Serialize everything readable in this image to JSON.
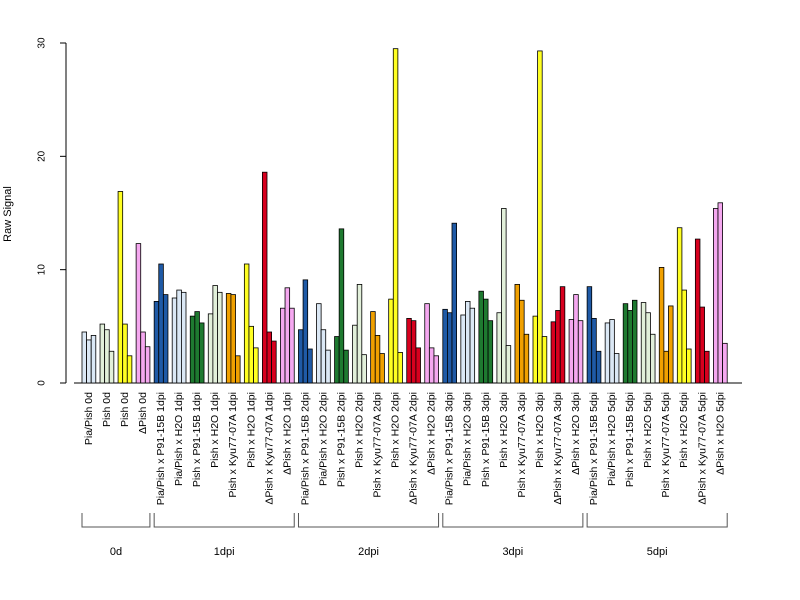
{
  "chart_data": {
    "type": "bar",
    "title": "",
    "xlabel": "",
    "ylabel": "Raw Signal",
    "ylim": [
      0,
      30
    ],
    "yticks": [
      0,
      10,
      20,
      30
    ],
    "grid": false,
    "categories": [
      "Pia/Pish 0d",
      "Pish 0d",
      "Pish 0d",
      "ΔPish 0d",
      "Pia/Pish x P91-15B 1dpi",
      "Pia/Pish x H2O 1dpi",
      "Pish x P91-15B 1dpi",
      "Pish x H2O 1dpi",
      "Pish x Kyu77-07A 1dpi",
      "Pish x H2O 1dpi",
      "ΔPish x Kyu77-07A 1dpi",
      "ΔPish x H2O 1dpi",
      "Pia/Pish x P91-15B 2dpi",
      "Pia/Pish x H2O 2dpi",
      "Pish x P91-15B 2dpi",
      "Pish x H2O 2dpi",
      "Pish x Kyu77-07A 2dpi",
      "Pish x H2O 2dpi",
      "ΔPish x Kyu77-07A 2dpi",
      "ΔPish x H2O 2dpi",
      "Pia/Pish x P91-15B 3dpi",
      "Pia/Pish x H2O 3dpi",
      "Pish x P91-15B 3dpi",
      "Pish x H2O 3dpi",
      "Pish x Kyu77-07A 3dpi",
      "Pish x H2O 3dpi",
      "ΔPish x Kyu77-07A 3dpi",
      "ΔPish x H2O 3dpi",
      "Pia/Pish x P91-15B 5dpi",
      "Pia/Pish x H2O 5dpi",
      "Pish x P91-15B 5dpi",
      "Pish x H2O 5dpi",
      "Pish x Kyu77-07A 5dpi",
      "Pish x H2O 5dpi",
      "ΔPish x Kyu77-07A 5dpi",
      "ΔPish x H2O 5dpi"
    ],
    "colors": [
      "#dbe8f5",
      "#e2f0da",
      "#ffff22",
      "#f5a8f0",
      "#1f5aa6",
      "#dbe8f5",
      "#1e7a30",
      "#e2f0da",
      "#f0a000",
      "#ffff22",
      "#d8001e",
      "#f5a8f0",
      "#1f5aa6",
      "#dbe8f5",
      "#1e7a30",
      "#e2f0da",
      "#f0a000",
      "#ffff22",
      "#d8001e",
      "#f5a8f0",
      "#1f5aa6",
      "#dbe8f5",
      "#1e7a30",
      "#e2f0da",
      "#f0a000",
      "#ffff22",
      "#d8001e",
      "#f5a8f0",
      "#1f5aa6",
      "#dbe8f5",
      "#1e7a30",
      "#e2f0da",
      "#f0a000",
      "#ffff22",
      "#d8001e",
      "#f5a8f0"
    ],
    "replicates": [
      [
        4.5,
        3.8,
        4.2
      ],
      [
        5.2,
        4.7,
        2.8
      ],
      [
        16.9,
        5.2,
        2.4
      ],
      [
        12.3,
        4.5,
        3.2
      ],
      [
        7.2,
        10.5,
        7.8
      ],
      [
        7.5,
        8.2,
        8.0
      ],
      [
        5.9,
        6.3,
        5.3
      ],
      [
        6.1,
        8.6,
        8.0
      ],
      [
        7.9,
        7.8,
        2.4
      ],
      [
        10.5,
        5.0,
        3.1
      ],
      [
        18.6,
        4.5,
        3.7
      ],
      [
        6.6,
        8.4,
        6.6
      ],
      [
        4.7,
        9.1,
        3.0
      ],
      [
        7.0,
        4.7,
        2.9
      ],
      [
        4.1,
        13.6,
        2.9
      ],
      [
        5.1,
        8.7,
        2.5
      ],
      [
        6.3,
        4.2,
        2.6
      ],
      [
        7.4,
        29.5,
        2.7
      ],
      [
        5.7,
        5.5,
        3.1
      ],
      [
        7.0,
        3.1,
        2.4
      ],
      [
        6.5,
        6.2,
        14.1
      ],
      [
        6.0,
        7.2,
        6.6
      ],
      [
        8.1,
        7.4,
        5.5
      ],
      [
        6.2,
        15.4,
        3.3
      ],
      [
        8.7,
        7.3,
        4.3
      ],
      [
        5.9,
        29.3,
        4.1
      ],
      [
        5.4,
        6.4,
        8.5
      ],
      [
        5.6,
        7.8,
        5.5
      ],
      [
        8.5,
        5.7,
        2.8
      ],
      [
        5.3,
        5.6,
        2.6
      ],
      [
        7.0,
        6.4,
        7.3
      ],
      [
        7.1,
        6.2,
        4.3
      ],
      [
        10.2,
        2.8,
        6.8
      ],
      [
        13.7,
        8.2,
        3.0
      ],
      [
        12.7,
        6.7,
        2.8
      ],
      [
        15.4,
        15.9,
        3.5
      ]
    ],
    "groups": [
      {
        "label": "0d",
        "start": 0,
        "end": 3
      },
      {
        "label": "1dpi",
        "start": 4,
        "end": 11
      },
      {
        "label": "2dpi",
        "start": 12,
        "end": 19
      },
      {
        "label": "3dpi",
        "start": 20,
        "end": 27
      },
      {
        "label": "5dpi",
        "start": 28,
        "end": 35
      }
    ]
  }
}
